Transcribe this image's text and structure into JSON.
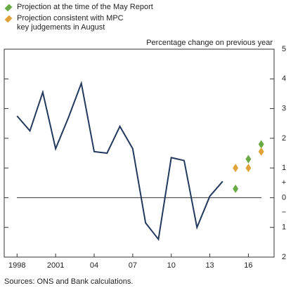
{
  "chart_data": {
    "type": "line",
    "y_axis_label": "Percentage change on previous year",
    "source": "Sources: ONS and Bank calculations.",
    "xlim": [
      1997,
      2018
    ],
    "xticks": [
      1998,
      2001,
      {
        "value": 2004,
        "label": "04"
      },
      {
        "value": 2007,
        "label": "07"
      },
      {
        "value": 2010,
        "label": "10"
      },
      {
        "value": 2013,
        "label": "13"
      },
      {
        "value": 2016,
        "label": "16"
      }
    ],
    "ylim": [
      -2,
      5
    ],
    "yticks": [
      5,
      4,
      3,
      2,
      1,
      0,
      {
        "value": -1,
        "label": "1"
      },
      {
        "value": -2,
        "label": "2"
      }
    ],
    "positive_sign": "+",
    "negative_sign": "−",
    "series": [
      {
        "color": "#23395d",
        "x": [
          1998,
          1999,
          2000,
          2001,
          2002,
          2003,
          2004,
          2005,
          2006,
          2007,
          2008,
          2009,
          2010,
          2011,
          2012,
          2013,
          2014
        ],
        "values": [
          2.75,
          2.25,
          3.55,
          1.65,
          2.7,
          3.85,
          1.55,
          1.5,
          2.4,
          1.65,
          -0.85,
          -1.4,
          1.35,
          1.25,
          -1.0,
          0.05,
          0.55
        ]
      },
      {
        "name": "Projection at the time of the May Report",
        "color": "#6aaa45",
        "marker": "diamond",
        "x": [
          2015,
          2016,
          2017
        ],
        "values": [
          0.3,
          1.3,
          1.8
        ]
      },
      {
        "name": "Projection consistent with MPC key judgements in August",
        "color": "#e0a33a",
        "marker": "diamond",
        "x": [
          2015,
          2016,
          2017
        ],
        "values": [
          1.0,
          1.0,
          1.55
        ]
      }
    ]
  }
}
